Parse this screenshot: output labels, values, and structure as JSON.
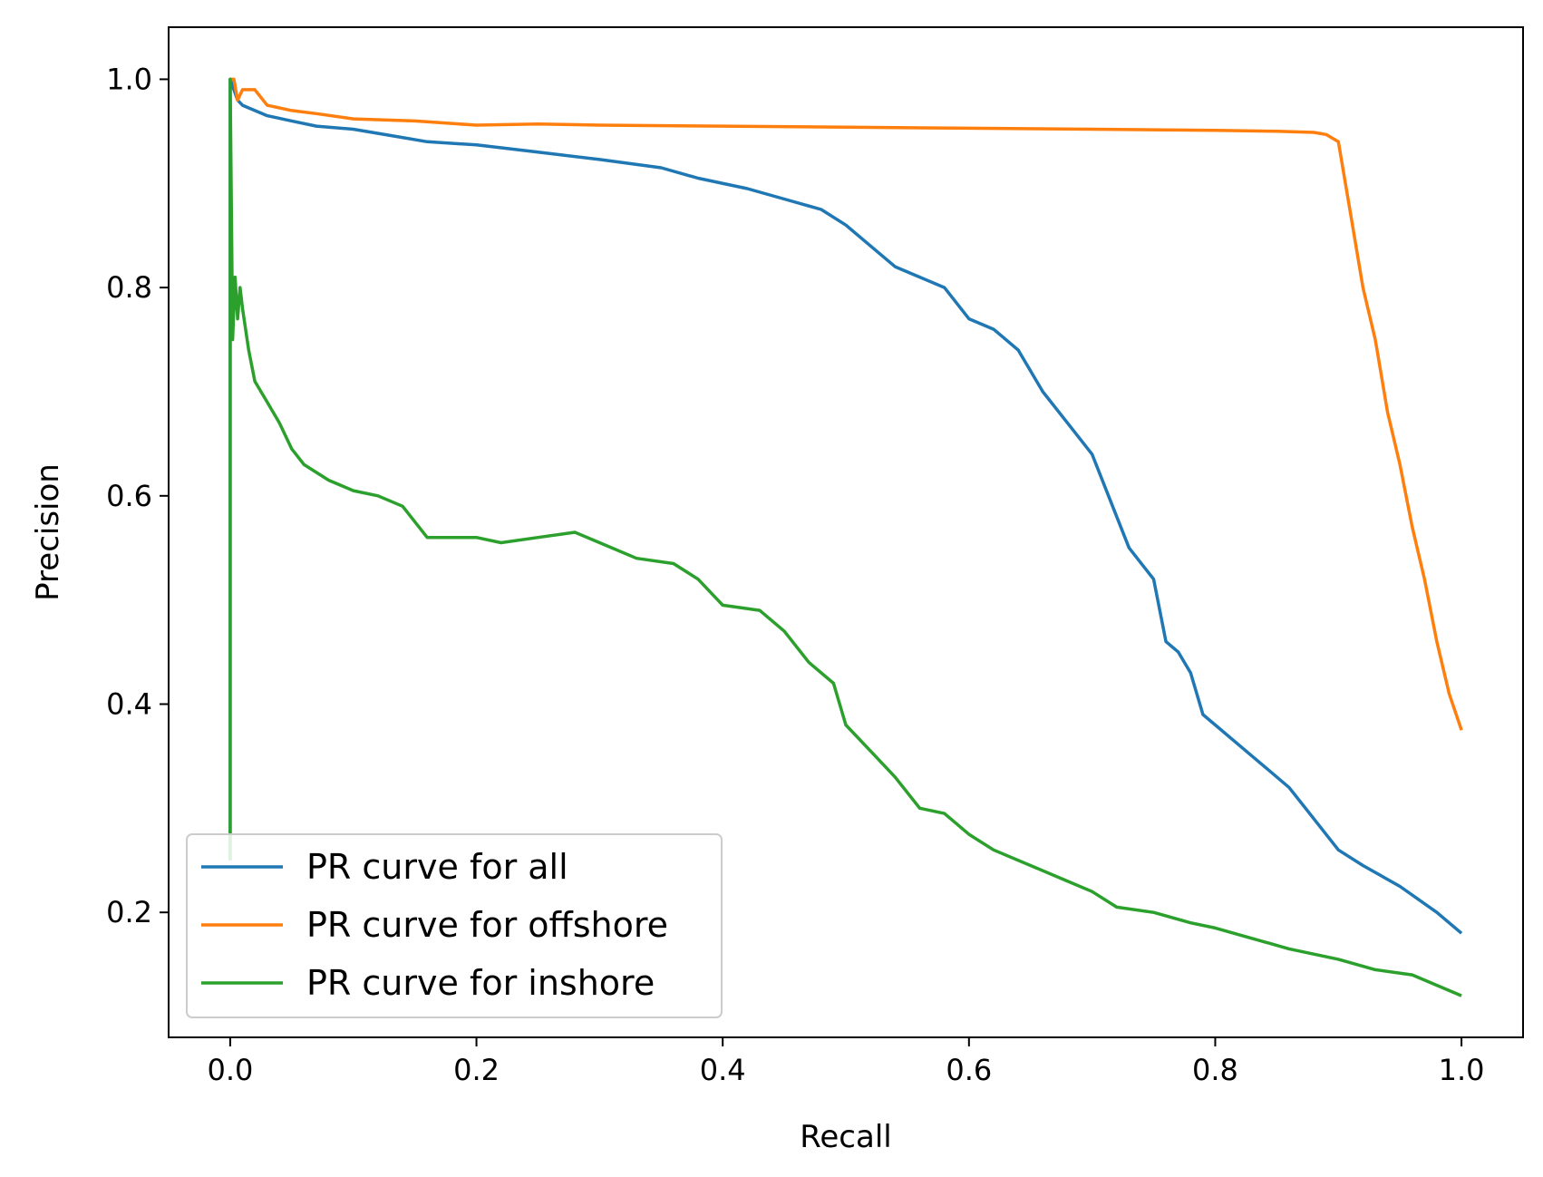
{
  "chart_data": {
    "type": "line",
    "title": "",
    "xlabel": "Recall",
    "ylabel": "Precision",
    "xlim": [
      -0.05,
      1.05
    ],
    "ylim": [
      0.08,
      1.05
    ],
    "xticks": [
      0.0,
      0.2,
      0.4,
      0.6,
      0.8,
      1.0
    ],
    "yticks": [
      0.2,
      0.4,
      0.6,
      0.8,
      1.0
    ],
    "xtick_labels": [
      "0.0",
      "0.2",
      "0.4",
      "0.6",
      "0.8",
      "1.0"
    ],
    "ytick_labels": [
      "0.2",
      "0.4",
      "0.6",
      "0.8",
      "1.0"
    ],
    "grid": false,
    "legend_position": "lower-left",
    "series": [
      {
        "name": "PR curve for all",
        "color": "#1f77b4",
        "x": [
          0.0,
          0.0,
          0.003,
          0.006,
          0.01,
          0.02,
          0.03,
          0.05,
          0.07,
          0.1,
          0.13,
          0.16,
          0.2,
          0.25,
          0.3,
          0.35,
          0.38,
          0.42,
          0.45,
          0.48,
          0.5,
          0.52,
          0.54,
          0.56,
          0.58,
          0.6,
          0.62,
          0.64,
          0.66,
          0.68,
          0.7,
          0.72,
          0.73,
          0.75,
          0.76,
          0.77,
          0.78,
          0.79,
          0.8,
          0.82,
          0.84,
          0.86,
          0.88,
          0.9,
          0.92,
          0.95,
          0.98,
          1.0
        ],
        "y": [
          0.25,
          1.0,
          0.99,
          0.98,
          0.975,
          0.97,
          0.965,
          0.96,
          0.955,
          0.952,
          0.946,
          0.94,
          0.937,
          0.93,
          0.923,
          0.915,
          0.905,
          0.895,
          0.885,
          0.875,
          0.86,
          0.84,
          0.82,
          0.81,
          0.8,
          0.77,
          0.76,
          0.74,
          0.7,
          0.67,
          0.64,
          0.58,
          0.55,
          0.52,
          0.46,
          0.45,
          0.43,
          0.39,
          0.38,
          0.36,
          0.34,
          0.32,
          0.29,
          0.26,
          0.245,
          0.225,
          0.2,
          0.18
        ]
      },
      {
        "name": "PR curve for offshore",
        "color": "#ff7f0e",
        "x": [
          0.0,
          0.003,
          0.006,
          0.01,
          0.02,
          0.03,
          0.05,
          0.07,
          0.1,
          0.15,
          0.2,
          0.25,
          0.3,
          0.4,
          0.5,
          0.6,
          0.7,
          0.8,
          0.85,
          0.88,
          0.89,
          0.9,
          0.91,
          0.92,
          0.93,
          0.94,
          0.95,
          0.96,
          0.97,
          0.98,
          0.99,
          1.0
        ],
        "y": [
          1.0,
          1.0,
          0.98,
          0.99,
          0.99,
          0.975,
          0.97,
          0.967,
          0.962,
          0.96,
          0.956,
          0.957,
          0.956,
          0.955,
          0.954,
          0.953,
          0.952,
          0.951,
          0.95,
          0.949,
          0.947,
          0.94,
          0.87,
          0.8,
          0.75,
          0.68,
          0.63,
          0.57,
          0.52,
          0.46,
          0.41,
          0.375
        ]
      },
      {
        "name": "PR curve for inshore",
        "color": "#2ca02c",
        "x": [
          0.0,
          0.0,
          0.002,
          0.004,
          0.006,
          0.008,
          0.01,
          0.015,
          0.02,
          0.03,
          0.04,
          0.05,
          0.06,
          0.08,
          0.1,
          0.12,
          0.14,
          0.16,
          0.18,
          0.2,
          0.22,
          0.25,
          0.28,
          0.3,
          0.33,
          0.36,
          0.38,
          0.4,
          0.43,
          0.45,
          0.47,
          0.49,
          0.5,
          0.52,
          0.54,
          0.56,
          0.58,
          0.6,
          0.62,
          0.65,
          0.68,
          0.7,
          0.72,
          0.75,
          0.78,
          0.8,
          0.83,
          0.86,
          0.9,
          0.93,
          0.96,
          1.0
        ],
        "y": [
          0.25,
          1.0,
          0.75,
          0.81,
          0.77,
          0.8,
          0.78,
          0.74,
          0.71,
          0.69,
          0.67,
          0.645,
          0.63,
          0.615,
          0.605,
          0.6,
          0.59,
          0.56,
          0.56,
          0.56,
          0.555,
          0.56,
          0.565,
          0.555,
          0.54,
          0.535,
          0.52,
          0.495,
          0.49,
          0.47,
          0.44,
          0.42,
          0.38,
          0.355,
          0.33,
          0.3,
          0.295,
          0.275,
          0.26,
          0.245,
          0.23,
          0.22,
          0.205,
          0.2,
          0.19,
          0.185,
          0.175,
          0.165,
          0.155,
          0.145,
          0.14,
          0.12
        ]
      }
    ]
  }
}
